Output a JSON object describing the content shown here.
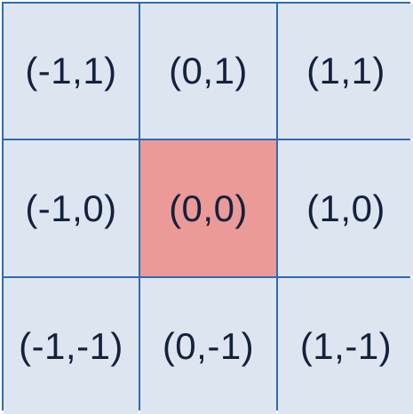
{
  "grid": {
    "highlight_color": "#eb9a98",
    "cell_color": "#dde5f0",
    "line_color": "#2e6bb0",
    "cells": [
      {
        "label": "(-1,1)",
        "highlighted": false
      },
      {
        "label": "(0,1)",
        "highlighted": false
      },
      {
        "label": "(1,1)",
        "highlighted": false
      },
      {
        "label": "(-1,0)",
        "highlighted": false
      },
      {
        "label": "(0,0)",
        "highlighted": true
      },
      {
        "label": "(1,0)",
        "highlighted": false
      },
      {
        "label": "(-1,-1)",
        "highlighted": false
      },
      {
        "label": "(0,-1)",
        "highlighted": false
      },
      {
        "label": "(1,-1)",
        "highlighted": false
      }
    ]
  }
}
